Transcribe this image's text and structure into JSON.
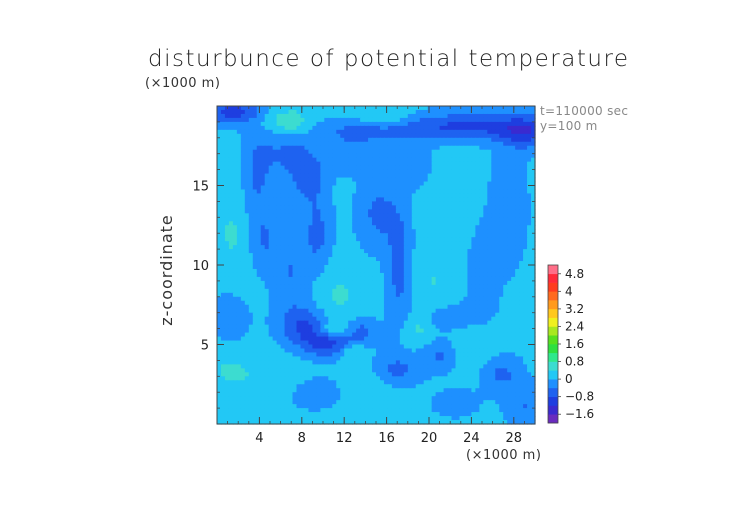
{
  "chart_data": {
    "type": "heatmap",
    "title": "disturbunce of potential temperature",
    "ylabel": "z-coordinate",
    "x_unit": "(×1000 m)",
    "y_unit": "(×1000 m)",
    "time_label": "t=110000 sec",
    "slice_label": "y=100 m",
    "xlim": [
      0,
      30
    ],
    "ylim": [
      0,
      20
    ],
    "x_ticks": [
      {
        "value": 4,
        "label": "4"
      },
      {
        "value": 8,
        "label": "8"
      },
      {
        "value": 12,
        "label": "12"
      },
      {
        "value": 16,
        "label": "16"
      },
      {
        "value": 20,
        "label": "20"
      },
      {
        "value": 24,
        "label": "24"
      },
      {
        "value": 28,
        "label": "28"
      }
    ],
    "y_ticks": [
      {
        "value": 5,
        "label": "5"
      },
      {
        "value": 10,
        "label": "10"
      },
      {
        "value": 15,
        "label": "15"
      }
    ],
    "colorbar": {
      "levels": [
        -2.0,
        -1.6,
        -1.2,
        -0.8,
        -0.4,
        0,
        0.4,
        0.8,
        1.2,
        1.6,
        2.0,
        2.4,
        2.8,
        3.2,
        3.6,
        4.0,
        4.4,
        4.8,
        5.2
      ],
      "colors": [
        "#6a2bbf",
        "#3a2ad0",
        "#1e3ee0",
        "#1e62f0",
        "#1e90ff",
        "#22c8f5",
        "#3cdcd0",
        "#2ee88c",
        "#2ee040",
        "#56e01e",
        "#a8e81e",
        "#f0f01e",
        "#ffc81e",
        "#ff9a1e",
        "#ff6a1e",
        "#ff3c1e",
        "#ff2a3a",
        "#ff6e88"
      ],
      "tick_labels": [
        {
          "value": -1.6,
          "label": "−1.6"
        },
        {
          "value": -0.8,
          "label": "−0.8"
        },
        {
          "value": 0,
          "label": "0"
        },
        {
          "value": 0.8,
          "label": "0.8"
        },
        {
          "value": 1.6,
          "label": "1.6"
        },
        {
          "value": 2.4,
          "label": "2.4"
        },
        {
          "value": 3.2,
          "label": "3.2"
        },
        {
          "value": 4.0,
          "label": "4"
        },
        {
          "value": 4.8,
          "label": "4.8"
        }
      ]
    },
    "background_value": 0.1,
    "features": [
      {
        "x": 10.5,
        "z": 5.2,
        "sx": 1.8,
        "sz": 0.7,
        "value": -1.1
      },
      {
        "x": 8.2,
        "z": 6.2,
        "sx": 1.6,
        "sz": 0.8,
        "value": -0.8
      },
      {
        "x": 13.5,
        "z": 5.8,
        "sx": 1.2,
        "sz": 0.6,
        "value": -0.6
      },
      {
        "x": 11.0,
        "z": 5.9,
        "sx": 1.2,
        "sz": 0.4,
        "value": 0.9
      },
      {
        "x": 12.8,
        "z": 4.6,
        "sx": 0.9,
        "sz": 0.5,
        "value": 0.6
      },
      {
        "x": 11.5,
        "z": 8.0,
        "sx": 1.5,
        "sz": 1.3,
        "value": 0.35
      },
      {
        "x": 7.0,
        "z": 9.5,
        "sx": 1.2,
        "sz": 2.0,
        "value": -0.5
      },
      {
        "x": 9.5,
        "z": 12.0,
        "sx": 0.9,
        "sz": 1.6,
        "value": -0.6
      },
      {
        "x": 8.5,
        "z": 15.6,
        "sx": 1.2,
        "sz": 1.2,
        "value": -0.7
      },
      {
        "x": 6.5,
        "z": 17.0,
        "sx": 1.6,
        "sz": 1.0,
        "value": -0.5
      },
      {
        "x": 15.2,
        "z": 13.2,
        "sx": 1.3,
        "sz": 1.5,
        "value": -0.6
      },
      {
        "x": 17.2,
        "z": 10.0,
        "sx": 0.8,
        "sz": 2.5,
        "value": -0.7
      },
      {
        "x": 12.5,
        "z": 17.0,
        "sx": 1.4,
        "sz": 0.8,
        "value": -0.45
      },
      {
        "x": 18.0,
        "z": 16.2,
        "sx": 1.6,
        "sz": 1.0,
        "value": -0.3
      },
      {
        "x": 3.8,
        "z": 15.5,
        "sx": 1.0,
        "sz": 2.5,
        "value": -0.55
      },
      {
        "x": 4.5,
        "z": 11.5,
        "sx": 1.0,
        "sz": 1.2,
        "value": -0.4
      },
      {
        "x": 1.5,
        "z": 12.0,
        "sx": 1.2,
        "sz": 2.0,
        "value": 0.35
      },
      {
        "x": 1.2,
        "z": 6.5,
        "sx": 1.3,
        "sz": 1.3,
        "value": -0.35
      },
      {
        "x": 1.0,
        "z": 3.5,
        "sx": 1.5,
        "sz": 1.2,
        "value": 0.3
      },
      {
        "x": 5.0,
        "z": 3.0,
        "sx": 2.5,
        "sz": 1.0,
        "value": 0.25
      },
      {
        "x": 17.0,
        "z": 3.4,
        "sx": 1.5,
        "sz": 0.7,
        "value": -0.6
      },
      {
        "x": 21.0,
        "z": 4.3,
        "sx": 1.2,
        "sz": 0.7,
        "value": -0.55
      },
      {
        "x": 26.8,
        "z": 3.2,
        "sx": 1.3,
        "sz": 0.8,
        "value": -0.6
      },
      {
        "x": 29.0,
        "z": 1.2,
        "sx": 1.2,
        "sz": 0.9,
        "value": -0.5
      },
      {
        "x": 22.5,
        "z": 1.3,
        "sx": 1.5,
        "sz": 0.6,
        "value": -0.35
      },
      {
        "x": 22.0,
        "z": 6.7,
        "sx": 2.0,
        "sz": 0.6,
        "value": -0.45
      },
      {
        "x": 25.0,
        "z": 9.5,
        "sx": 1.0,
        "sz": 2.0,
        "value": -0.45
      },
      {
        "x": 27.5,
        "z": 13.5,
        "sx": 1.2,
        "sz": 2.5,
        "value": -0.4
      },
      {
        "x": 22.0,
        "z": 13.0,
        "sx": 1.5,
        "sz": 1.5,
        "value": 0.25
      },
      {
        "x": 20.5,
        "z": 9.0,
        "sx": 1.5,
        "sz": 1.5,
        "value": 0.3
      },
      {
        "x": 24.5,
        "z": 5.0,
        "sx": 1.5,
        "sz": 1.0,
        "value": 0.35
      },
      {
        "x": 19.0,
        "z": 6.0,
        "sx": 1.0,
        "sz": 0.7,
        "value": 0.4
      },
      {
        "x": 9.0,
        "z": 2.0,
        "sx": 2.0,
        "sz": 0.8,
        "value": -0.3
      },
      {
        "x": 14.5,
        "z": 2.2,
        "sx": 1.5,
        "sz": 0.8,
        "value": 0.2
      },
      {
        "x": 24.0,
        "z": 18.7,
        "sx": 6.0,
        "sz": 0.6,
        "value": -1.0
      },
      {
        "x": 29.0,
        "z": 18.2,
        "sx": 1.5,
        "sz": 0.7,
        "value": -0.8
      },
      {
        "x": 14.0,
        "z": 18.4,
        "sx": 3.0,
        "sz": 0.5,
        "value": -0.5
      },
      {
        "x": 1.5,
        "z": 19.6,
        "sx": 2.0,
        "sz": 0.5,
        "value": -1.1
      },
      {
        "x": 7.0,
        "z": 19.0,
        "sx": 1.2,
        "sz": 0.55,
        "value": 0.65
      },
      {
        "x": 15.8,
        "z": 19.2,
        "sx": 1.8,
        "sz": 0.5,
        "value": 0.55
      },
      {
        "x": 4.5,
        "z": 19.2,
        "sx": 1.2,
        "sz": 0.5,
        "value": 0.3
      }
    ]
  }
}
